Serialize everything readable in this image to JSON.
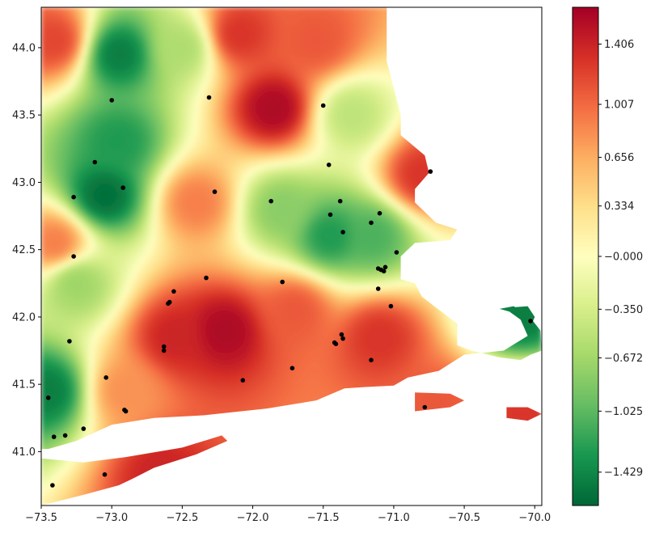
{
  "chart_data": {
    "type": "heatmap",
    "title": "",
    "xlabel": "",
    "ylabel": "",
    "xlim": [
      -73.5,
      -69.95
    ],
    "ylim": [
      40.6,
      44.3
    ],
    "x_ticks": [
      {
        "value": -73.5,
        "label": "−73.5"
      },
      {
        "value": -73.0,
        "label": "−73.0"
      },
      {
        "value": -72.5,
        "label": "−72.5"
      },
      {
        "value": -72.0,
        "label": "−72.0"
      },
      {
        "value": -71.5,
        "label": "−71.5"
      },
      {
        "value": -71.0,
        "label": "−71.0"
      },
      {
        "value": -70.5,
        "label": "−70.5"
      },
      {
        "value": -70.0,
        "label": "−70.0"
      }
    ],
    "y_ticks": [
      {
        "value": 41.0,
        "label": "41.0"
      },
      {
        "value": 41.5,
        "label": "41.5"
      },
      {
        "value": 42.0,
        "label": "42.0"
      },
      {
        "value": 42.5,
        "label": "42.5"
      },
      {
        "value": 43.0,
        "label": "43.0"
      },
      {
        "value": 43.5,
        "label": "43.5"
      },
      {
        "value": 44.0,
        "label": "44.0"
      }
    ],
    "colorbar": {
      "colormap": "RdYlGn_r",
      "range": [
        -1.65,
        1.65
      ],
      "ticks": [
        {
          "value": 1.406,
          "label": "1.406"
        },
        {
          "value": 1.007,
          "label": "1.007"
        },
        {
          "value": 0.656,
          "label": "0.656"
        },
        {
          "value": 0.334,
          "label": "0.334"
        },
        {
          "value": 0.0,
          "label": "−0.000"
        },
        {
          "value": -0.35,
          "label": "−0.350"
        },
        {
          "value": -0.672,
          "label": "−0.672"
        },
        {
          "value": -1.025,
          "label": "−1.025"
        },
        {
          "value": -1.429,
          "label": "−1.429"
        }
      ]
    },
    "field_extrema": [
      {
        "lon": -72.95,
        "lat": 43.95,
        "value": -1.5
      },
      {
        "lon": -73.05,
        "lat": 42.9,
        "value": -1.6
      },
      {
        "lon": -72.95,
        "lat": 43.3,
        "value": -1.3
      },
      {
        "lon": -73.45,
        "lat": 41.45,
        "value": -1.5
      },
      {
        "lon": -71.45,
        "lat": 42.6,
        "value": -1.3
      },
      {
        "lon": -71.15,
        "lat": 42.6,
        "value": -1.1
      },
      {
        "lon": -70.1,
        "lat": 42.0,
        "value": -1.5
      },
      {
        "lon": -71.85,
        "lat": 43.55,
        "value": 1.6
      },
      {
        "lon": -72.2,
        "lat": 41.9,
        "value": 1.6
      },
      {
        "lon": -72.55,
        "lat": 41.85,
        "value": 1.4
      },
      {
        "lon": -71.7,
        "lat": 42.05,
        "value": 1.1
      },
      {
        "lon": -71.1,
        "lat": 41.85,
        "value": 1.3
      },
      {
        "lon": -72.65,
        "lat": 40.85,
        "value": 1.4
      },
      {
        "lon": -73.4,
        "lat": 44.05,
        "value": 1.2
      },
      {
        "lon": -72.1,
        "lat": 44.1,
        "value": 1.3
      },
      {
        "lon": -71.55,
        "lat": 44.05,
        "value": 1.1
      },
      {
        "lon": -73.4,
        "lat": 42.55,
        "value": 0.9
      },
      {
        "lon": -70.8,
        "lat": 43.05,
        "value": 1.3
      },
      {
        "lon": -70.05,
        "lat": 41.3,
        "value": 1.3
      },
      {
        "lon": -70.7,
        "lat": 41.35,
        "value": 1.1
      },
      {
        "lon": -72.4,
        "lat": 42.85,
        "value": 0.9
      },
      {
        "lon": -72.9,
        "lat": 41.45,
        "value": 0.8
      },
      {
        "lon": -72.5,
        "lat": 44.0,
        "value": -0.6
      },
      {
        "lon": -73.25,
        "lat": 42.25,
        "value": -0.7
      },
      {
        "lon": -71.8,
        "lat": 42.8,
        "value": -0.8
      },
      {
        "lon": -71.3,
        "lat": 43.5,
        "value": -0.5
      }
    ],
    "station_points": [
      {
        "lon": -73.0,
        "lat": 43.61
      },
      {
        "lon": -72.31,
        "lat": 43.63
      },
      {
        "lon": -71.5,
        "lat": 43.57
      },
      {
        "lon": -73.12,
        "lat": 43.15
      },
      {
        "lon": -71.46,
        "lat": 43.13
      },
      {
        "lon": -70.74,
        "lat": 43.08
      },
      {
        "lon": -72.92,
        "lat": 42.96
      },
      {
        "lon": -72.27,
        "lat": 42.93
      },
      {
        "lon": -73.27,
        "lat": 42.89
      },
      {
        "lon": -71.87,
        "lat": 42.86
      },
      {
        "lon": -71.38,
        "lat": 42.86
      },
      {
        "lon": -71.45,
        "lat": 42.76
      },
      {
        "lon": -71.1,
        "lat": 42.77
      },
      {
        "lon": -71.16,
        "lat": 42.7
      },
      {
        "lon": -71.36,
        "lat": 42.63
      },
      {
        "lon": -73.27,
        "lat": 42.45
      },
      {
        "lon": -70.98,
        "lat": 42.48
      },
      {
        "lon": -71.06,
        "lat": 42.37
      },
      {
        "lon": -71.09,
        "lat": 42.35
      },
      {
        "lon": -71.07,
        "lat": 42.34
      },
      {
        "lon": -71.11,
        "lat": 42.36
      },
      {
        "lon": -72.33,
        "lat": 42.29
      },
      {
        "lon": -71.79,
        "lat": 42.26
      },
      {
        "lon": -72.56,
        "lat": 42.19
      },
      {
        "lon": -71.11,
        "lat": 42.21
      },
      {
        "lon": -72.6,
        "lat": 42.1
      },
      {
        "lon": -72.59,
        "lat": 42.11
      },
      {
        "lon": -71.02,
        "lat": 42.08
      },
      {
        "lon": -70.03,
        "lat": 41.97
      },
      {
        "lon": -71.37,
        "lat": 41.87
      },
      {
        "lon": -71.36,
        "lat": 41.84
      },
      {
        "lon": -73.3,
        "lat": 41.82
      },
      {
        "lon": -71.42,
        "lat": 41.81
      },
      {
        "lon": -71.41,
        "lat": 41.8
      },
      {
        "lon": -72.63,
        "lat": 41.78
      },
      {
        "lon": -72.63,
        "lat": 41.75
      },
      {
        "lon": -71.16,
        "lat": 41.68
      },
      {
        "lon": -71.72,
        "lat": 41.62
      },
      {
        "lon": -73.04,
        "lat": 41.55
      },
      {
        "lon": -72.07,
        "lat": 41.53
      },
      {
        "lon": -73.45,
        "lat": 41.4
      },
      {
        "lon": -72.91,
        "lat": 41.31
      },
      {
        "lon": -72.9,
        "lat": 41.3
      },
      {
        "lon": -70.78,
        "lat": 41.33
      },
      {
        "lon": -73.2,
        "lat": 41.17
      },
      {
        "lon": -73.41,
        "lat": 41.11
      },
      {
        "lon": -73.33,
        "lat": 41.12
      },
      {
        "lon": -73.05,
        "lat": 40.83
      },
      {
        "lon": -73.42,
        "lat": 40.75
      }
    ],
    "land_regions": [
      [
        [
          -73.5,
          44.3
        ],
        [
          -71.05,
          44.3
        ],
        [
          -71.05,
          43.9
        ],
        [
          -70.95,
          43.5
        ],
        [
          -70.95,
          43.35
        ],
        [
          -70.78,
          43.2
        ],
        [
          -70.75,
          43.07
        ],
        [
          -70.85,
          42.95
        ],
        [
          -70.85,
          42.85
        ],
        [
          -70.7,
          42.7
        ],
        [
          -70.55,
          42.65
        ],
        [
          -70.6,
          42.57
        ],
        [
          -70.85,
          42.55
        ],
        [
          -70.95,
          42.45
        ],
        [
          -70.95,
          42.35
        ],
        [
          -70.95,
          42.28
        ],
        [
          -70.85,
          42.25
        ],
        [
          -70.8,
          42.15
        ],
        [
          -70.65,
          42.03
        ],
        [
          -70.55,
          41.95
        ],
        [
          -70.55,
          41.79
        ],
        [
          -70.45,
          41.75
        ],
        [
          -70.25,
          41.7
        ],
        [
          -70.1,
          41.68
        ],
        [
          -70.03,
          41.72
        ],
        [
          -69.95,
          41.75
        ],
        [
          -69.96,
          41.9
        ],
        [
          -70.05,
          42.02
        ],
        [
          -70.15,
          42.08
        ],
        [
          -70.25,
          42.06
        ],
        [
          -70.18,
          42.04
        ],
        [
          -70.1,
          41.98
        ],
        [
          -70.05,
          41.86
        ],
        [
          -70.22,
          41.75
        ],
        [
          -70.5,
          41.72
        ],
        [
          -70.68,
          41.6
        ],
        [
          -70.9,
          41.55
        ],
        [
          -71.0,
          41.49
        ],
        [
          -71.2,
          41.48
        ],
        [
          -71.35,
          41.47
        ],
        [
          -71.55,
          41.38
        ],
        [
          -71.9,
          41.32
        ],
        [
          -72.35,
          41.27
        ],
        [
          -72.7,
          41.25
        ],
        [
          -73.0,
          41.2
        ],
        [
          -73.25,
          41.08
        ],
        [
          -73.45,
          41.02
        ],
        [
          -73.5,
          41.02
        ]
      ],
      [
        [
          -73.5,
          40.95
        ],
        [
          -73.2,
          40.92
        ],
        [
          -72.9,
          40.96
        ],
        [
          -72.5,
          41.03
        ],
        [
          -72.22,
          41.12
        ],
        [
          -72.18,
          41.08
        ],
        [
          -72.4,
          40.98
        ],
        [
          -72.7,
          40.88
        ],
        [
          -72.85,
          40.8
        ],
        [
          -72.95,
          40.75
        ],
        [
          -73.2,
          40.68
        ],
        [
          -73.5,
          40.6
        ]
      ],
      [
        [
          -70.85,
          41.44
        ],
        [
          -70.6,
          41.43
        ],
        [
          -70.5,
          41.38
        ],
        [
          -70.6,
          41.33
        ],
        [
          -70.85,
          41.3
        ]
      ],
      [
        [
          -70.2,
          41.33
        ],
        [
          -70.05,
          41.33
        ],
        [
          -69.95,
          41.28
        ],
        [
          -70.05,
          41.23
        ],
        [
          -70.2,
          41.25
        ]
      ],
      [
        [
          -70.18,
          42.07
        ],
        [
          -70.05,
          42.08
        ],
        [
          -70.0,
          42.0
        ],
        [
          -70.02,
          41.95
        ],
        [
          -70.12,
          42.02
        ]
      ]
    ]
  }
}
